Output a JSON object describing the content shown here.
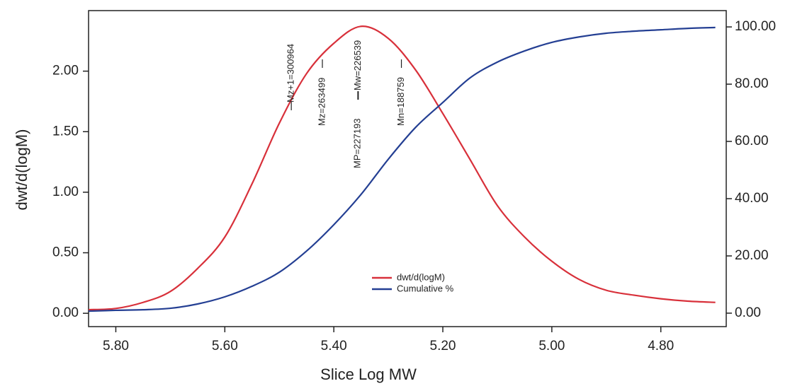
{
  "chart_data": {
    "type": "line",
    "x_label": "Slice Log MW",
    "y_label": "dwt/d(logM)",
    "x": [
      5.85,
      5.8,
      5.75,
      5.7,
      5.65,
      5.6,
      5.55,
      5.5,
      5.45,
      5.4,
      5.35,
      5.3,
      5.25,
      5.2,
      5.15,
      5.1,
      5.05,
      5.0,
      4.95,
      4.9,
      4.85,
      4.8,
      4.75,
      4.7
    ],
    "series": [
      {
        "name": "dwt/d(logM)",
        "color": "#d8303a",
        "axis": "y",
        "values": [
          0.03,
          0.04,
          0.09,
          0.18,
          0.37,
          0.63,
          1.07,
          1.57,
          1.98,
          2.23,
          2.37,
          2.27,
          2.01,
          1.65,
          1.27,
          0.89,
          0.63,
          0.43,
          0.28,
          0.19,
          0.15,
          0.12,
          0.1,
          0.09
        ]
      },
      {
        "name": "Cumulative %",
        "color": "#243f93",
        "axis": "y2",
        "values": [
          0.7,
          1,
          1.2,
          1.7,
          3.2,
          5.7,
          9.4,
          14.3,
          21.7,
          30.9,
          41.5,
          53.8,
          64.9,
          73.6,
          82.2,
          87.7,
          91.6,
          94.6,
          96.5,
          97.8,
          98.5,
          99,
          99.5,
          99.8
        ]
      }
    ],
    "xlim": [
      5.85,
      4.68
    ],
    "xticks": [
      {
        "value": 5.8,
        "label": "5.80"
      },
      {
        "value": 5.6,
        "label": "5.60"
      },
      {
        "value": 5.4,
        "label": "5.40"
      },
      {
        "value": 5.2,
        "label": "5.20"
      },
      {
        "value": 5.0,
        "label": "5.00"
      },
      {
        "value": 4.8,
        "label": "4.80"
      }
    ],
    "ylim": [
      -0.11,
      2.5
    ],
    "yticks": [
      {
        "value": 0,
        "label": "0.00"
      },
      {
        "value": 0.5,
        "label": "0.50"
      },
      {
        "value": 1,
        "label": "1.00"
      },
      {
        "value": 1.5,
        "label": "1.50"
      },
      {
        "value": 2,
        "label": "2.00"
      }
    ],
    "y2lim": [
      -4.7,
      105.7
    ],
    "y2ticks": [
      {
        "value": 0,
        "label": "0.00"
      },
      {
        "value": 20,
        "label": "20.00"
      },
      {
        "value": 40,
        "label": "40.00"
      },
      {
        "value": 60,
        "label": "60.00"
      },
      {
        "value": 80,
        "label": "80.00"
      },
      {
        "value": 100,
        "label": "100.00"
      }
    ],
    "annotations": [
      {
        "label": "Mz+1=300964",
        "x": 5.478
      },
      {
        "label": "Mz=263499",
        "x": 5.421
      },
      {
        "label": "MP=227193",
        "x": 5.356
      },
      {
        "label": "Mw=226539",
        "x": 5.355
      },
      {
        "label": "Mn=188759",
        "x": 5.276
      }
    ],
    "legend": "lower center",
    "grid": false
  }
}
